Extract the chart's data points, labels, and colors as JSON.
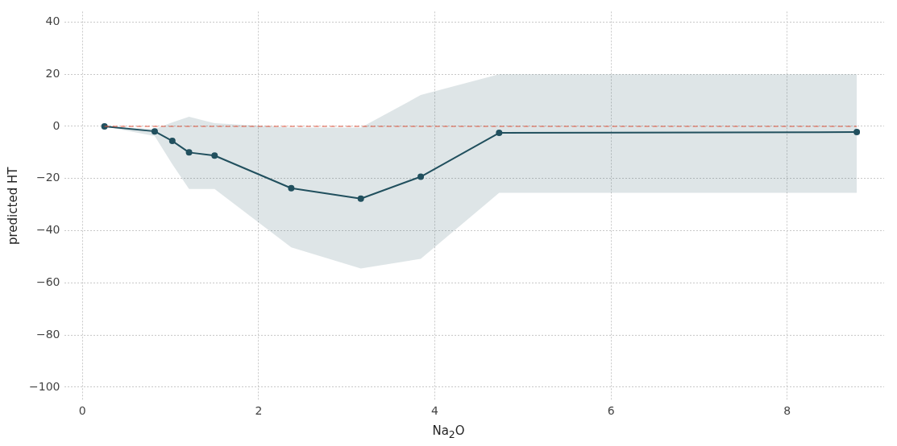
{
  "chart_data": {
    "type": "line",
    "xlabel": "Na$_{2}$O",
    "ylabel": "predicted HT",
    "x": [
      0.25,
      0.82,
      1.02,
      1.21,
      1.5,
      2.37,
      3.16,
      3.84,
      4.73,
      8.79
    ],
    "series": [
      {
        "color": "#22505f",
        "values": [
          0,
          -1.9,
          -5.6,
          -10,
          -11.2,
          -23.7,
          -27.7,
          -19.3,
          -2.5,
          -2.2
        ],
        "lower": [
          0,
          -3.7,
          -14.5,
          -24,
          -24,
          -46.4,
          -54.5,
          -50.8,
          -25.5,
          -25.5
        ],
        "upper": [
          0,
          -1,
          1.5,
          3.7,
          1.2,
          -0.5,
          -0.5,
          12,
          20,
          20
        ]
      }
    ],
    "ref_lines": [
      {
        "axis": "y",
        "value": 0,
        "color": "#e0533c",
        "line_style": "dashed"
      }
    ],
    "xlim": [
      -0.2,
      9.1
    ],
    "ylim": [
      -105,
      44
    ],
    "xticks": [
      0,
      2,
      4,
      6,
      8
    ],
    "yticks": [
      -100,
      -80,
      -60,
      -40,
      -20,
      0,
      20,
      40
    ],
    "grid": true,
    "marker": "circle",
    "line_style": "solid",
    "legend": false
  }
}
